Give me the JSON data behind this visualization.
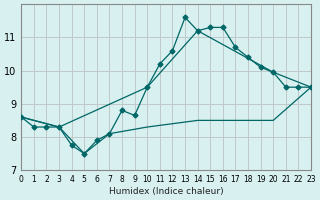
{
  "xlabel": "Humidex (Indice chaleur)",
  "bg_color": "#d8f0f0",
  "grid_color": "#c0c8c8",
  "line_color": "#006666",
  "xlim": [
    0,
    23
  ],
  "ylim": [
    7,
    12
  ],
  "yticks": [
    7,
    8,
    9,
    10,
    11
  ],
  "xticks": [
    0,
    1,
    2,
    3,
    4,
    5,
    6,
    7,
    8,
    9,
    10,
    11,
    12,
    13,
    14,
    15,
    16,
    17,
    18,
    19,
    20,
    21,
    22,
    23
  ],
  "series1_x": [
    0,
    1,
    2,
    3,
    4,
    5,
    6,
    7,
    8,
    9,
    10,
    11,
    12,
    13,
    14,
    15,
    16,
    17,
    18,
    19,
    20,
    21,
    22,
    23
  ],
  "series1_y": [
    8.6,
    8.3,
    8.3,
    8.3,
    7.75,
    7.5,
    7.9,
    8.1,
    8.8,
    8.65,
    9.5,
    10.2,
    10.6,
    11.6,
    11.2,
    11.3,
    11.3,
    10.7,
    10.4,
    10.1,
    9.95,
    9.5,
    9.5,
    9.5
  ],
  "series2_x": [
    0,
    3,
    10,
    14,
    20,
    23
  ],
  "series2_y": [
    8.6,
    8.3,
    9.5,
    11.2,
    9.95,
    9.5
  ],
  "series3_x": [
    0,
    3,
    5,
    7,
    10,
    14,
    20,
    23
  ],
  "series3_y": [
    8.6,
    8.3,
    7.5,
    8.1,
    8.3,
    8.5,
    8.5,
    9.5
  ]
}
